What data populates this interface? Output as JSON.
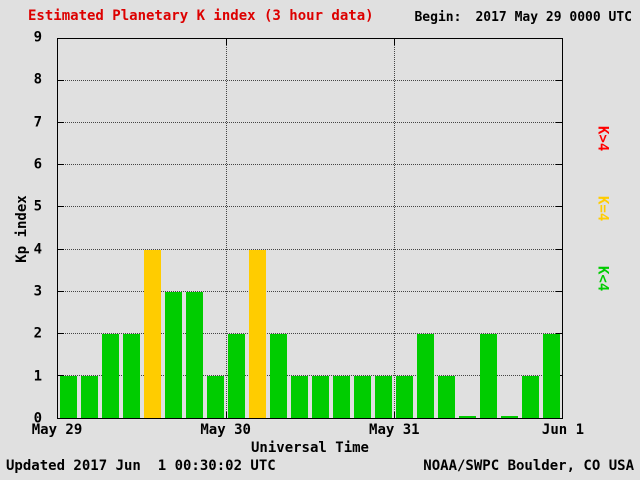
{
  "title": "Estimated Planetary K index (3 hour data)",
  "begin_label": "Begin:",
  "begin_value": "2017 May 29 0000 UTC",
  "footer": {
    "updated": "Updated 2017 Jun  1 00:30:02 UTC",
    "source": "NOAA/SWPC Boulder, CO USA"
  },
  "colors": {
    "background": "#e0e0e0",
    "title": "#dd0000",
    "bar_low": "#00cc00",
    "bar_mid": "#ffcc00",
    "bar_high": "#ff0000"
  },
  "legend": [
    {
      "label": "K>4",
      "color": "#ff0000"
    },
    {
      "label": "K=4",
      "color": "#ffcc00"
    },
    {
      "label": "K<4",
      "color": "#00cc00"
    }
  ],
  "chart_data": {
    "type": "bar",
    "title": "Estimated Planetary K index (3 hour data)",
    "xlabel": "Universal Time",
    "ylabel": "Kp index",
    "ylim": [
      0,
      9
    ],
    "yticks": [
      0,
      1,
      2,
      3,
      4,
      5,
      6,
      7,
      8,
      9
    ],
    "bin_hours": 3,
    "grid": true,
    "xticks": [
      {
        "label": "May 29",
        "pos": 0
      },
      {
        "label": "May 30",
        "pos": 0.33333
      },
      {
        "label": "May 31",
        "pos": 0.66667
      },
      {
        "label": "Jun 1",
        "pos": 1
      }
    ],
    "days": [
      "May 29",
      "May 30",
      "May 31"
    ],
    "values": [
      1,
      1,
      2,
      2,
      4,
      3,
      3,
      1,
      2,
      4,
      2,
      1,
      1,
      1,
      1,
      1,
      1,
      2,
      1,
      0,
      2,
      0,
      1,
      2
    ],
    "color_rule": "green if K<4, yellow if K=4, red if K>4"
  }
}
